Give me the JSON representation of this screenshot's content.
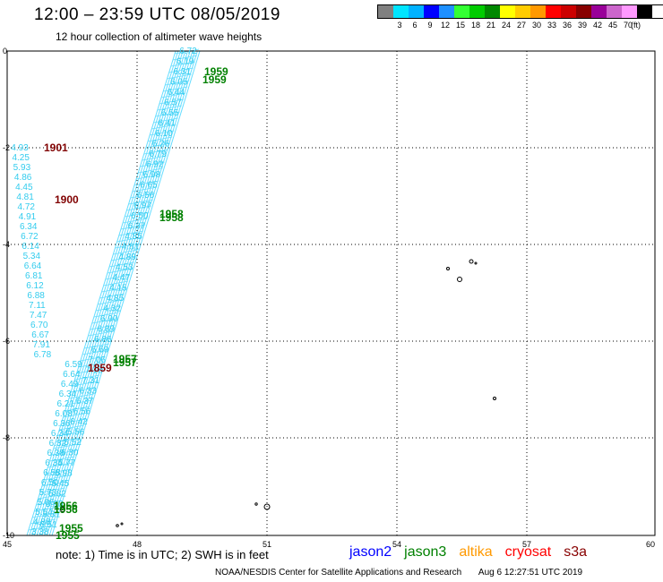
{
  "title": "12:00  –  23:59  UTC  08/05/2019",
  "subtitle": "12 hour collection of altimeter wave heights",
  "legend": {
    "unit": "(ft)",
    "items": [
      {
        "label": "",
        "color": "#808080"
      },
      {
        "label": "3",
        "color": "#00e5ff"
      },
      {
        "label": "6",
        "color": "#00b2ff"
      },
      {
        "label": "9",
        "color": "#0000ff"
      },
      {
        "label": "12",
        "color": "#1e90ff"
      },
      {
        "label": "15",
        "color": "#33ff33"
      },
      {
        "label": "18",
        "color": "#00cc00"
      },
      {
        "label": "21",
        "color": "#008800"
      },
      {
        "label": "24",
        "color": "#ffff00"
      },
      {
        "label": "27",
        "color": "#ffcc00"
      },
      {
        "label": "30",
        "color": "#ff9900"
      },
      {
        "label": "33",
        "color": "#ff0000"
      },
      {
        "label": "36",
        "color": "#cc0000"
      },
      {
        "label": "39",
        "color": "#880000"
      },
      {
        "label": "42",
        "color": "#990099"
      },
      {
        "label": "45",
        "color": "#cc66cc"
      },
      {
        "label": "70",
        "color": "#ff99ff"
      },
      {
        "label": "",
        "color": "#000000"
      }
    ]
  },
  "axes": {
    "x_ticks": [
      "45",
      "48",
      "51",
      "54",
      "57",
      "60"
    ],
    "y_ticks": [
      "0",
      "-2",
      "-4",
      "-6",
      "-8",
      "-10"
    ]
  },
  "track_values": {
    "right": [
      "6.72",
      "6.19",
      "6.31",
      "6.05",
      "6.44",
      "6.57",
      "6.55",
      "6.41",
      "6.10",
      "6.26",
      "6.79",
      "6.92",
      "6.98",
      "6.65",
      "6.56",
      "6.97",
      "6.50",
      "6.37",
      "4.85",
      "4.81",
      "4.89",
      "4.53",
      "4.47",
      "4.15",
      "4.85",
      "4.32",
      "6.90",
      "6.89",
      "6.86",
      "6.69",
      "7.06",
      "7.18",
      "7.31",
      "6.33",
      "6.37",
      "6.56",
      "6.42",
      "5.56",
      "5.52",
      "6.30",
      "5.77",
      "5.98",
      "5.45",
      "5.82",
      "5.90",
      "5.31",
      "6.51"
    ],
    "left": [
      "4.93",
      "4.25",
      "5.93",
      "4.86",
      "4.45",
      "4.81",
      "4.72",
      "4.91",
      "6.34",
      "6.72",
      "6.14",
      "5.34",
      "6.64",
      "6.81",
      "6.12",
      "6.88",
      "7.11",
      "7.47",
      "6.70",
      "6.67",
      "7.91",
      "6.78",
      "6.59",
      "6.64",
      "6.49",
      "6.34",
      "6.21",
      "6.08",
      "6.36",
      "6.34",
      "6.32",
      "6.38",
      "6.34",
      "6.58",
      "6.50",
      "5.73",
      "5.06",
      "5.54",
      "4.88",
      "3.38"
    ]
  },
  "time_labels": [
    {
      "text": "1959",
      "color": "#008000"
    },
    {
      "text": "1959",
      "color": "#008000"
    },
    {
      "text": "1901",
      "color": "#800000"
    },
    {
      "text": "1900",
      "color": "#800000"
    },
    {
      "text": "1958",
      "color": "#008000"
    },
    {
      "text": "1958",
      "color": "#008000"
    },
    {
      "text": "1957",
      "color": "#008000"
    },
    {
      "text": "1957",
      "color": "#008000"
    },
    {
      "text": "1859",
      "color": "#800000"
    },
    {
      "text": "1956",
      "color": "#008000"
    },
    {
      "text": "1956",
      "color": "#008000"
    },
    {
      "text": "1955",
      "color": "#008000"
    },
    {
      "text": "1955",
      "color": "#008000"
    }
  ],
  "note": "note:  1) Time is in UTC;  2) SWH is in feet",
  "satellites": [
    {
      "name": "jason2",
      "color": "#0000ff"
    },
    {
      "name": "jason3",
      "color": "#008000"
    },
    {
      "name": "altika",
      "color": "#ff9900"
    },
    {
      "name": "cryosat",
      "color": "#ff0000"
    },
    {
      "name": "s3a",
      "color": "#880000"
    }
  ],
  "footer": {
    "credit": "NOAA/NESDIS Center for Satellite Applications and Research",
    "timestamp": "Aug  6 12:27:51 UTC 2019"
  },
  "colors": {
    "swh_text": "#33ccee",
    "swath": "#66ddff",
    "grid": "#000000"
  }
}
